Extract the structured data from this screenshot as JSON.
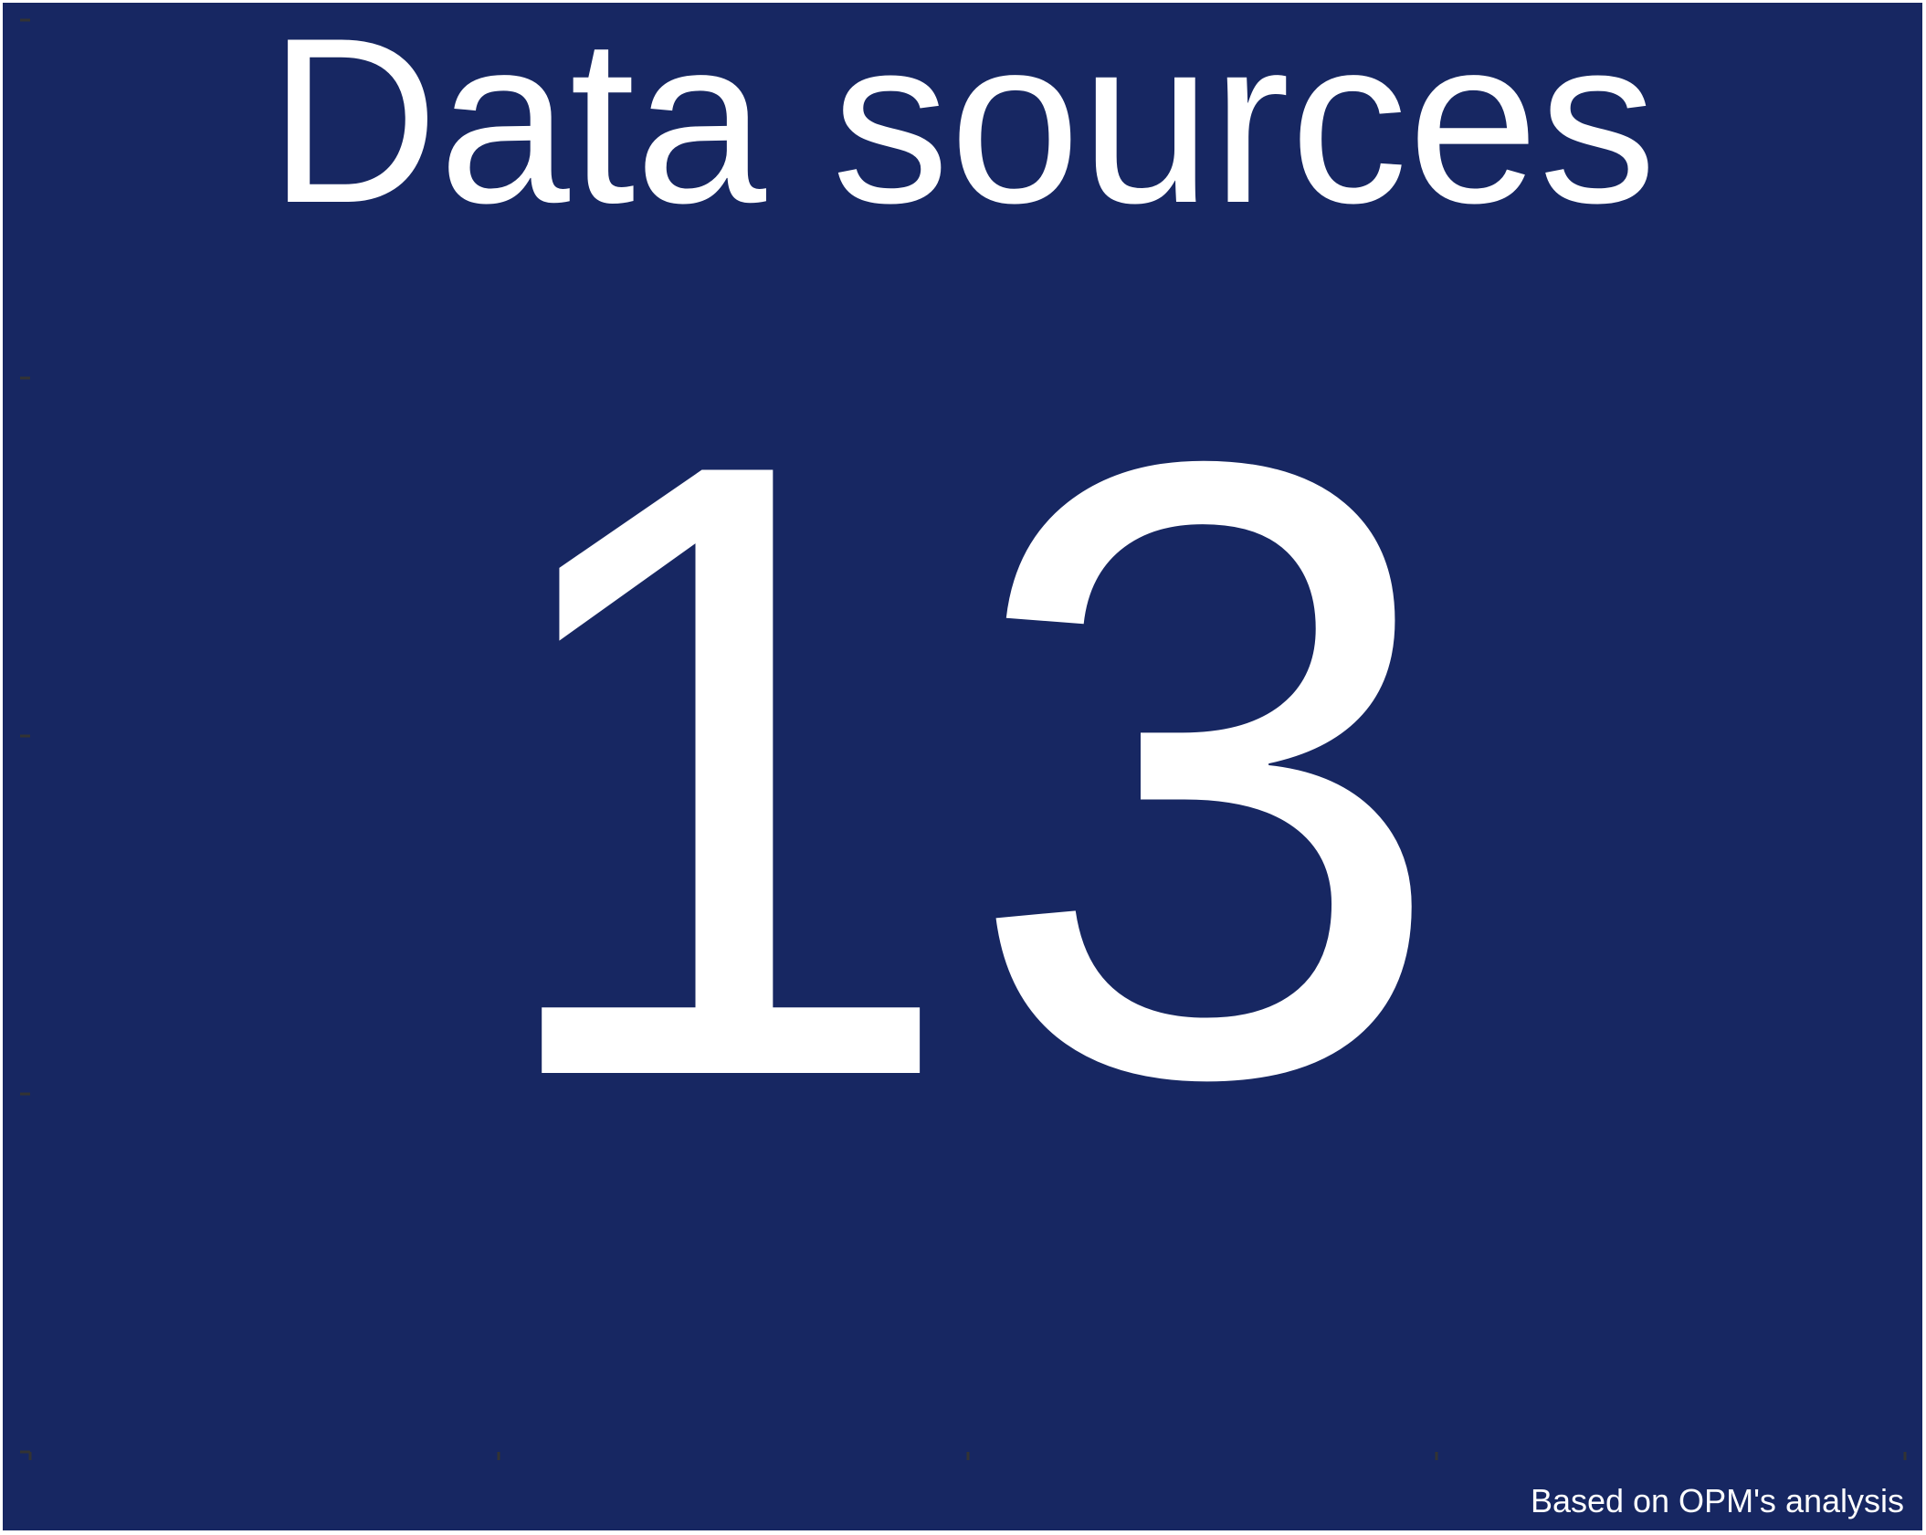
{
  "chart_data": {
    "type": "table",
    "title": "Data sources",
    "value": "13",
    "caption": "Based on OPM's analysis",
    "colors": {
      "background": "#172762",
      "text": "#ffffff",
      "tick": "#333333"
    }
  }
}
